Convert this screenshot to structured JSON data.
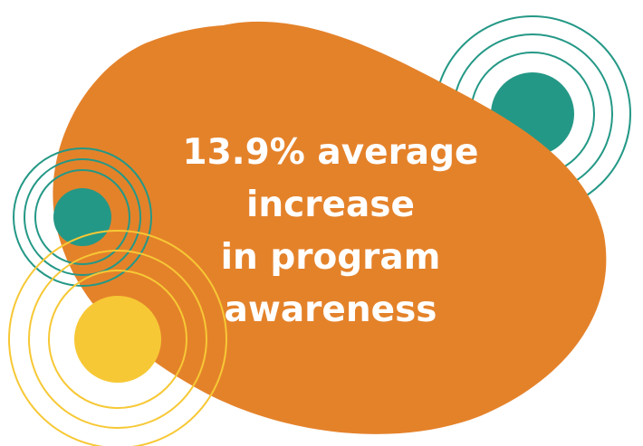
{
  "headline": {
    "lines": [
      "13.9% average",
      "increase",
      "in program",
      "awareness"
    ]
  },
  "colors": {
    "blob": "#E4822A",
    "teal": "#249886",
    "yellow": "#F7C835",
    "text": "#FFFFFF",
    "background": "#FFFFFF"
  },
  "decorations": [
    "orange-blob",
    "teal-ripple-top-right",
    "teal-ripple-left",
    "yellow-ripple-bottom-left"
  ]
}
